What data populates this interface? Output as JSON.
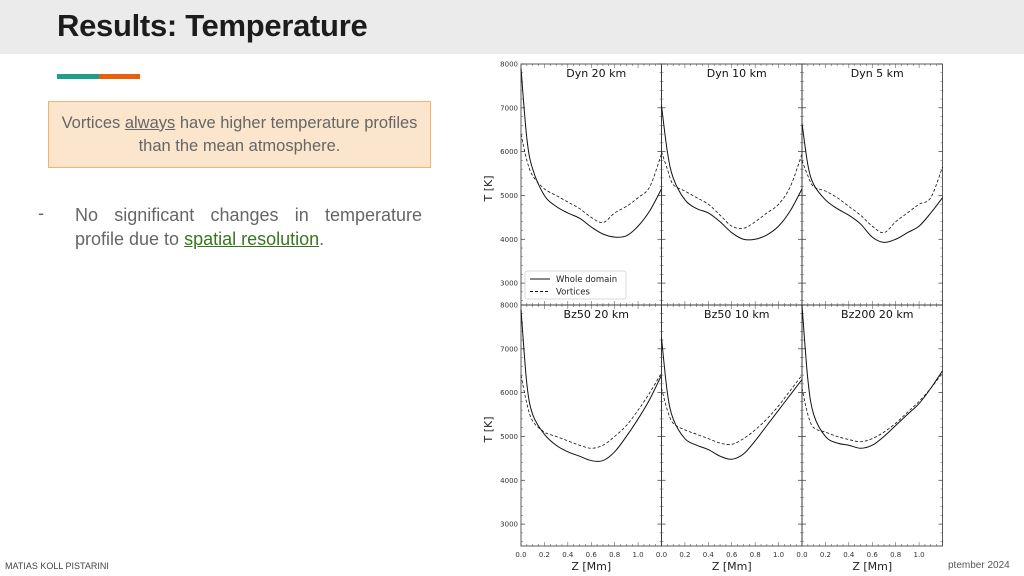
{
  "slide": {
    "title": "Results: Temperature",
    "accent_colors": {
      "teal": "#1f9e8a",
      "orange": "#e8600c"
    },
    "callout": {
      "before": "Vortices ",
      "emphasis": "always",
      "after": " have higher temperature profiles than the mean atmosphere."
    },
    "bullet": {
      "dash": "-",
      "text": "No significant changes in temperature profile due to ",
      "link": "spatial resolution",
      "end": "."
    },
    "footer_left": "MATIAS KOLL PISTARINI",
    "footer_right": "ptember 2024"
  },
  "chart_data": {
    "type": "line",
    "xlabel": "Z [Mm]",
    "ylabel": "T [K]",
    "xlim": [
      0,
      1.2
    ],
    "ylim": [
      2500,
      8000
    ],
    "xticks": [
      "0.0",
      "0.2",
      "0.4",
      "0.6",
      "0.8",
      "1.0"
    ],
    "yticks": [
      "3000",
      "4000",
      "5000",
      "6000",
      "7000",
      "8000"
    ],
    "legend": {
      "placement": "lower-left",
      "panel": 0,
      "entries": [
        {
          "name": "Whole domain",
          "style": "solid"
        },
        {
          "name": "Vortices",
          "style": "dashed"
        }
      ]
    },
    "x": [
      0,
      0.05,
      0.1,
      0.2,
      0.3,
      0.4,
      0.5,
      0.6,
      0.7,
      0.8,
      0.9,
      1.0,
      1.1,
      1.2
    ],
    "panels": [
      {
        "title": "Dyn 20 km",
        "series": [
          {
            "name": "Whole domain",
            "values": [
              7900,
              6300,
              5600,
              5000,
              4750,
              4600,
              4480,
              4280,
              4120,
              4050,
              4080,
              4300,
              4650,
              5150
            ]
          },
          {
            "name": "Vortices",
            "values": [
              6400,
              5800,
              5450,
              5150,
              5000,
              4850,
              4700,
              4500,
              4380,
              4600,
              4750,
              4950,
              5200,
              5950
            ]
          }
        ]
      },
      {
        "title": "Dyn 10 km",
        "series": [
          {
            "name": "Whole domain",
            "values": [
              7050,
              6000,
              5400,
              4900,
              4700,
              4600,
              4400,
              4150,
              4000,
              4000,
              4100,
              4300,
              4650,
              5150
            ]
          },
          {
            "name": "Vortices",
            "values": [
              6000,
              5600,
              5250,
              5100,
              4950,
              4800,
              4550,
              4300,
              4250,
              4400,
              4600,
              4800,
              5200,
              5950
            ]
          }
        ]
      },
      {
        "title": "Dyn 5 km",
        "series": [
          {
            "name": "Whole domain",
            "values": [
              6650,
              5700,
              5250,
              4900,
              4700,
              4550,
              4350,
              4050,
              3930,
              4000,
              4150,
              4300,
              4600,
              4950
            ]
          },
          {
            "name": "Vortices",
            "values": [
              5800,
              5450,
              5200,
              5100,
              4950,
              4750,
              4550,
              4300,
              4150,
              4400,
              4600,
              4800,
              4950,
              5650
            ]
          }
        ]
      },
      {
        "title": "Bz50 20 km",
        "series": [
          {
            "name": "Whole domain",
            "values": [
              7900,
              6200,
              5500,
              5050,
              4800,
              4650,
              4550,
              4450,
              4450,
              4650,
              5000,
              5400,
              5850,
              6400
            ]
          },
          {
            "name": "Vortices",
            "values": [
              6400,
              5750,
              5350,
              5100,
              5000,
              4900,
              4800,
              4730,
              4800,
              5000,
              5250,
              5600,
              6000,
              6450
            ]
          }
        ]
      },
      {
        "title": "Bz50 10 km",
        "series": [
          {
            "name": "Whole domain",
            "values": [
              7250,
              6000,
              5400,
              4950,
              4800,
              4700,
              4550,
              4480,
              4600,
              4900,
              5250,
              5600,
              5950,
              6300
            ]
          },
          {
            "name": "Vortices",
            "values": [
              6100,
              5600,
              5300,
              5150,
              5050,
              4950,
              4850,
              4820,
              4950,
              5150,
              5400,
              5700,
              6050,
              6400
            ]
          }
        ]
      },
      {
        "title": "Bz200 20 km",
        "series": [
          {
            "name": "Whole domain",
            "values": [
              8000,
              6300,
              5500,
              5000,
              4850,
              4800,
              4730,
              4800,
              5000,
              5250,
              5500,
              5750,
              6100,
              6500
            ]
          },
          {
            "name": "Vortices",
            "values": [
              6100,
              5500,
              5200,
              5100,
              5000,
              4930,
              4880,
              4950,
              5100,
              5300,
              5550,
              5800,
              6100,
              6450
            ]
          }
        ]
      }
    ]
  }
}
